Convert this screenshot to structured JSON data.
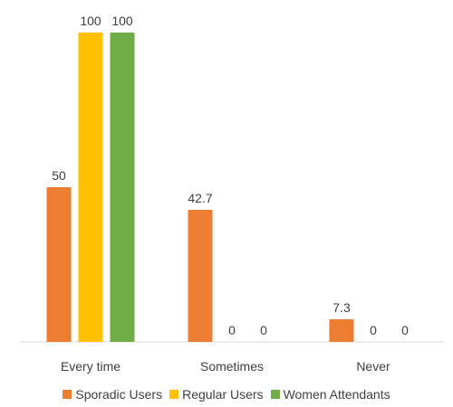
{
  "chart_data": {
    "type": "bar",
    "categories": [
      "Every time",
      "Sometimes",
      "Never"
    ],
    "series": [
      {
        "name": "Sporadic Users",
        "values": [
          50,
          42.7,
          7.3
        ],
        "color": "#ED7D31"
      },
      {
        "name": "Regular Users",
        "values": [
          100,
          0,
          0
        ],
        "color": "#FFC000"
      },
      {
        "name": "Women Attendants",
        "values": [
          100,
          0,
          0
        ],
        "color": "#70AD47"
      }
    ],
    "data_labels": [
      [
        "50",
        "42.7",
        "7.3"
      ],
      [
        "100",
        "0",
        "0"
      ],
      [
        "100",
        "0",
        "0"
      ]
    ],
    "title": "",
    "xlabel": "",
    "ylabel": "",
    "ylim": [
      0,
      100
    ],
    "grid": false,
    "legend_position": "bottom",
    "axis_color": "#D9D9D9",
    "text_color": "#404040"
  }
}
